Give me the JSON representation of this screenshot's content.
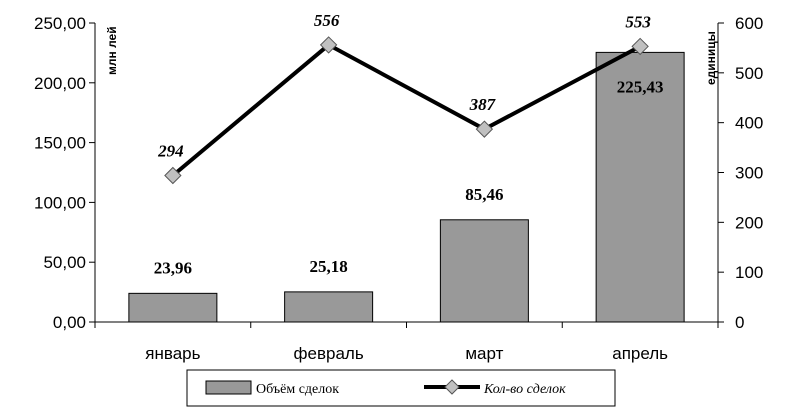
{
  "chart_data": {
    "type": "bar",
    "categories": [
      "январь",
      "февраль",
      "март",
      "апрель"
    ],
    "series": [
      {
        "name": "Объём сделок",
        "type": "bar",
        "axis": "left",
        "values": [
          23.96,
          25.18,
          85.46,
          225.43
        ],
        "labels": [
          "23,96",
          "25,18",
          "85,46",
          "225,43"
        ],
        "color": "#999999"
      },
      {
        "name": "Кол-во сделок",
        "type": "line",
        "axis": "right",
        "values": [
          294,
          556,
          387,
          553
        ],
        "labels": [
          "294",
          "556",
          "387",
          "553"
        ],
        "color": "#000000",
        "marker": "diamond",
        "marker_color": "#c0c0c0"
      }
    ],
    "y_left": {
      "label": "млн лей",
      "ylim": [
        0,
        250
      ],
      "ticks": [
        0,
        50,
        100,
        150,
        200,
        250
      ],
      "tick_labels": [
        "0,00",
        "50,00",
        "100,00",
        "150,00",
        "200,00",
        "250,00"
      ]
    },
    "y_right": {
      "label": "единицы",
      "ylim": [
        0,
        600
      ],
      "ticks": [
        0,
        100,
        200,
        300,
        400,
        500,
        600
      ],
      "tick_labels": [
        "0",
        "100",
        "200",
        "300",
        "400",
        "500",
        "600"
      ]
    },
    "grid": false,
    "legend_position": "bottom"
  }
}
